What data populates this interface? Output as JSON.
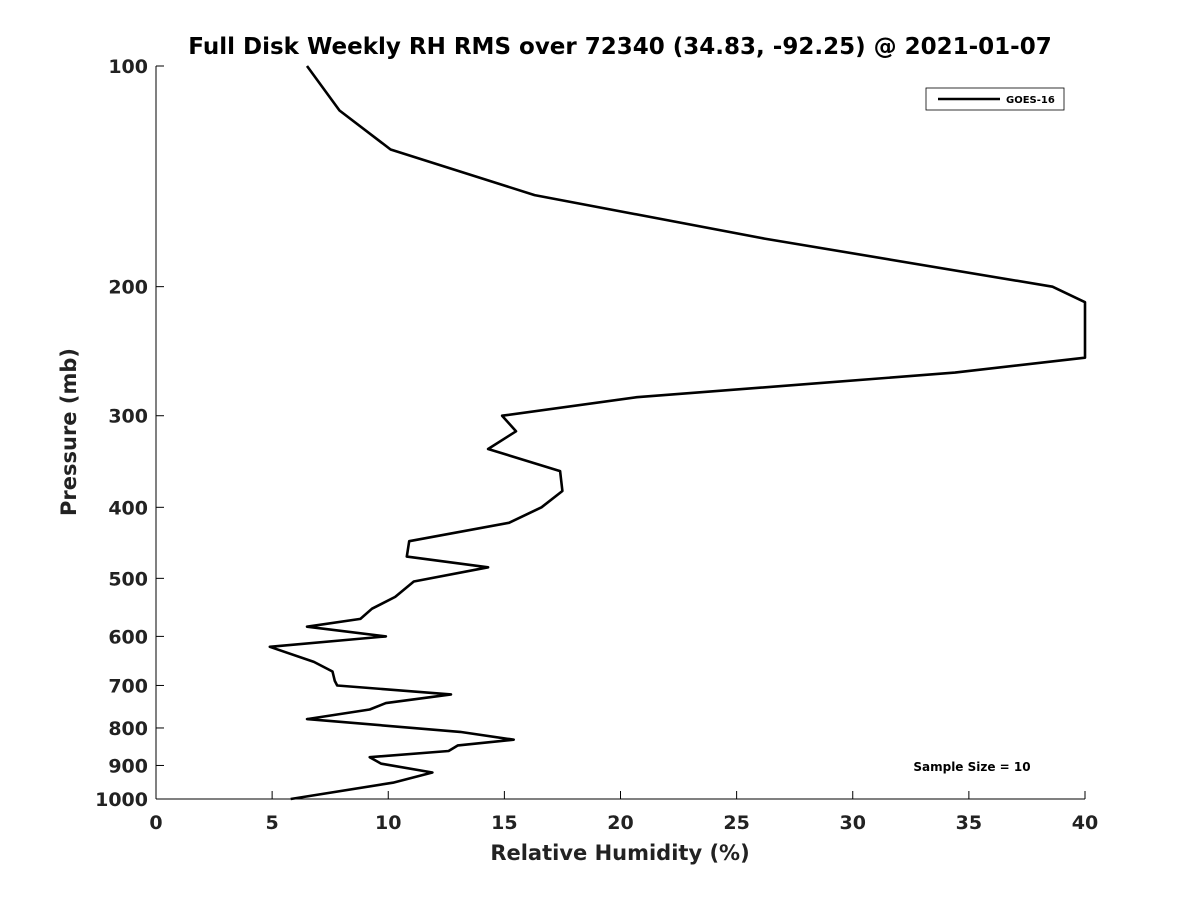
{
  "chart_data": {
    "type": "line",
    "title": "Full Disk Weekly RH RMS over 72340 (34.83, -92.25) @ 2021-01-07",
    "xlabel": "Relative Humidity (%)",
    "ylabel": "Pressure (mb)",
    "xlim": [
      0,
      40
    ],
    "ylim": [
      1000,
      100
    ],
    "y_scale": "log",
    "x_ticks": [
      "0",
      "5",
      "10",
      "15",
      "20",
      "25",
      "30",
      "35",
      "40"
    ],
    "y_ticks": [
      "100",
      "200",
      "300",
      "400",
      "500",
      "600",
      "700",
      "800",
      "900",
      "1000"
    ],
    "grid": false,
    "legend_position": "top-right",
    "annotation": "Sample Size = 10",
    "series": [
      {
        "name": "GOES-16",
        "color": "#000000",
        "x": [
          6.5,
          7.9,
          10.1,
          16.3,
          26.2,
          38.6,
          40.0,
          40.0,
          34.4,
          20.7,
          14.9,
          15.5,
          14.3,
          17.4,
          17.5,
          16.6,
          15.2,
          10.9,
          10.8,
          14.3,
          11.1,
          10.3,
          9.3,
          8.8,
          6.5,
          9.9,
          4.9,
          6.8,
          7.6,
          7.7,
          7.8,
          12.7,
          9.9,
          9.2,
          6.5,
          13.1,
          15.4,
          13.0,
          12.6,
          9.2,
          9.7,
          11.9,
          10.2,
          5.8
        ],
        "y": [
          100,
          115,
          130,
          150,
          172,
          200,
          210,
          250,
          262,
          283,
          300,
          315,
          333,
          357,
          380,
          400,
          420,
          445,
          467,
          483,
          505,
          530,
          550,
          568,
          582,
          600,
          620,
          650,
          670,
          690,
          700,
          720,
          740,
          755,
          778,
          810,
          830,
          845,
          860,
          877,
          895,
          920,
          950,
          1000
        ]
      }
    ]
  }
}
